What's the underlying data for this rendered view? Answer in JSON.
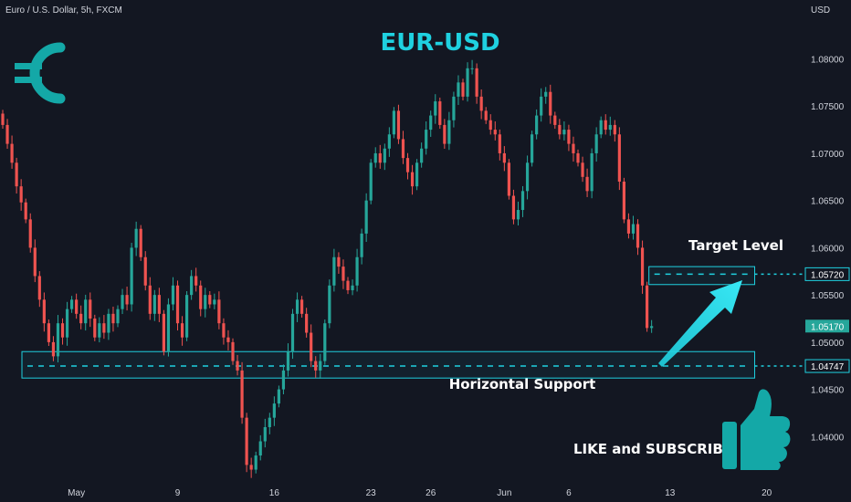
{
  "header": {
    "symbol": "Euro / U.S. Dollar, 5h, FXCM",
    "currency": "USD"
  },
  "colors": {
    "background": "#131722",
    "up": "#26a69a",
    "down": "#ef5350",
    "accent": "#1fd1e0"
  },
  "icons": {
    "euro_badge": "euro-sign-icon",
    "thumbs_up": "thumbs-up-icon",
    "arrow": "arrow-up-right-icon"
  },
  "chart_data": {
    "type": "candlestick",
    "title": "EUR-USD",
    "x_tick_labels": [
      "May",
      "9",
      "16",
      "23",
      "26",
      "Jun",
      "6",
      "13",
      "20"
    ],
    "y_ticks": [
      "1.08000",
      "1.07500",
      "1.07000",
      "1.06500",
      "1.06000",
      "1.05500",
      "1.05000",
      "1.04500",
      "1.04000"
    ],
    "ylim": [
      1.0352,
      1.0843
    ],
    "grid": false,
    "levels": [
      {
        "name": "Target Level",
        "value": 1.0572,
        "label": "1.05720"
      },
      {
        "name": "Horizontal Support",
        "value": 1.04747,
        "label": "1.04747"
      }
    ],
    "last_price": {
      "value": 1.0517,
      "label": "1.05170"
    },
    "annotations": [
      "Target Level",
      "Horizontal Support",
      "LIKE and SUBSCRIBE"
    ],
    "series_close": [
      1.073,
      1.071,
      1.069,
      1.0665,
      1.0648,
      1.063,
      1.06,
      1.057,
      1.0545,
      1.052,
      1.05,
      1.0485,
      1.052,
      1.0505,
      1.0535,
      1.0545,
      1.053,
      1.052,
      1.0545,
      1.0525,
      1.0505,
      1.052,
      1.051,
      1.053,
      1.052,
      1.0535,
      1.055,
      1.054,
      1.06,
      1.062,
      1.059,
      1.056,
      1.053,
      1.055,
      1.053,
      1.049,
      1.054,
      1.056,
      1.052,
      1.0505,
      1.055,
      1.057,
      1.056,
      1.0535,
      1.055,
      1.054,
      1.0545,
      1.052,
      1.0505,
      1.05,
      1.048,
      1.047,
      1.042,
      1.037,
      1.0365,
      1.038,
      1.0395,
      1.041,
      1.042,
      1.0435,
      1.045,
      1.047,
      1.049,
      1.053,
      1.0545,
      1.053,
      1.051,
      1.048,
      1.047,
      1.048,
      1.052,
      1.056,
      1.059,
      1.058,
      1.0565,
      1.0555,
      1.056,
      1.059,
      1.0615,
      1.065,
      1.069,
      1.07,
      1.069,
      1.0705,
      1.072,
      1.0745,
      1.0715,
      1.0695,
      1.068,
      1.0665,
      1.069,
      1.0705,
      1.0725,
      1.074,
      1.0755,
      1.073,
      1.071,
      1.0735,
      1.076,
      1.0775,
      1.076,
      1.079,
      1.079,
      1.076,
      1.0745,
      1.0735,
      1.0725,
      1.072,
      1.07,
      1.069,
      1.0655,
      1.063,
      1.064,
      1.066,
      1.069,
      1.072,
      1.074,
      1.076,
      1.0765,
      1.074,
      1.073,
      1.072,
      1.0725,
      1.071,
      1.07,
      1.069,
      1.0675,
      1.066,
      1.07,
      1.072,
      1.0735,
      1.0725,
      1.073,
      1.072,
      1.067,
      1.063,
      1.0615,
      1.0625,
      1.06,
      1.056,
      1.0515,
      1.0517
    ]
  },
  "annotation_shapes": {
    "target_box": {
      "price_top": 1.058,
      "price_bottom": 1.0561,
      "index_start": 142,
      "index_end": 163
    },
    "support_box": {
      "price_top": 1.049,
      "price_bottom": 1.0462,
      "index_start": 0,
      "index_end": 163
    }
  }
}
